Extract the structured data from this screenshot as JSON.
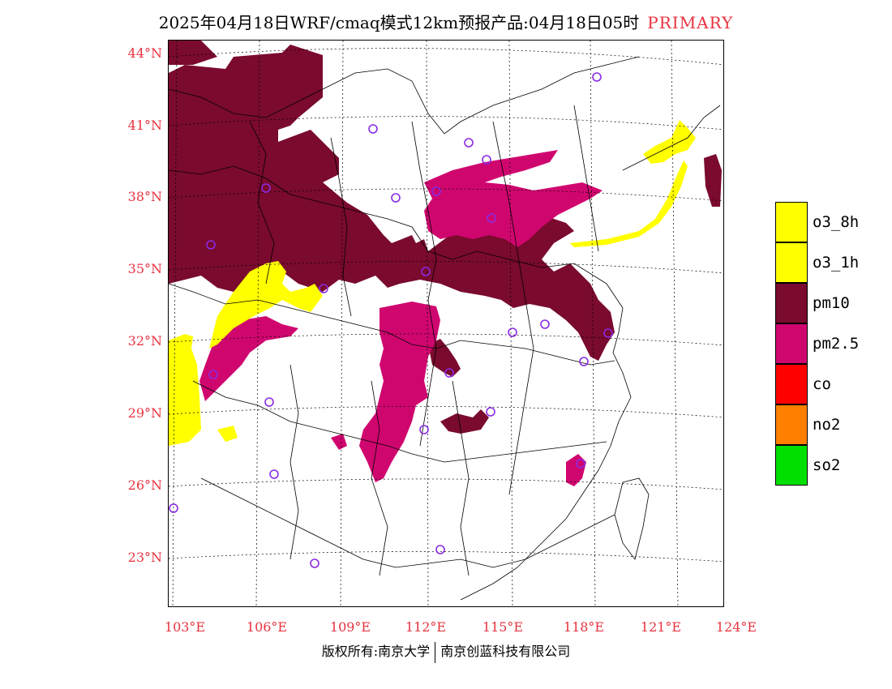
{
  "title": {
    "main": "2025年04月18日WRF/cmaq模式12km预报产品:04月18日05时",
    "tag": "PRIMARY"
  },
  "axes": {
    "lat_labels": [
      "44°N",
      "41°N",
      "38°N",
      "35°N",
      "32°N",
      "29°N",
      "26°N",
      "23°N"
    ],
    "lon_labels": [
      "103°E",
      "106°E",
      "109°E",
      "112°E",
      "115°E",
      "118°E",
      "121°E",
      "124°E"
    ]
  },
  "legend": [
    {
      "label": "o3_8h",
      "color": "#ffff00"
    },
    {
      "label": "o3_1h",
      "color": "#ffff00"
    },
    {
      "label": "pm10",
      "color": "#7a0a2e"
    },
    {
      "label": "pm2.5",
      "color": "#d0066f"
    },
    {
      "label": "co",
      "color": "#ff0000"
    },
    {
      "label": "no2",
      "color": "#ff8000"
    },
    {
      "label": "so2",
      "color": "#00e000"
    }
  ],
  "footer": {
    "left": "版权所有:南京大学",
    "right": "南京创蓝科技有限公司"
  },
  "colors": {
    "pm10": "#7a0a2e",
    "pm25": "#d0066f",
    "o3": "#ffff00",
    "station": "#8a2be2",
    "tick_red": "#e8333f"
  }
}
